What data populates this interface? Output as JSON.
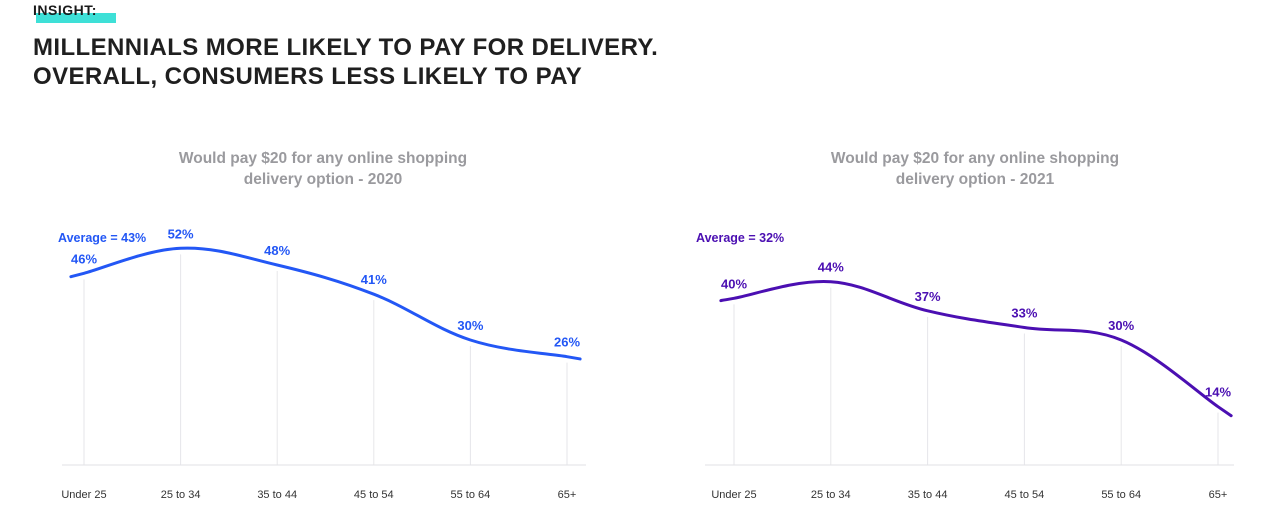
{
  "insight_label": "INSIGHT:",
  "headline": {
    "line1": "MILLENNIALS MORE LIKELY TO PAY FOR DELIVERY.",
    "line2": "OVERALL, CONSUMERS LESS LIKELY TO PAY"
  },
  "colors": {
    "series_2020": "#2357f5",
    "series_2021": "#4b0fb2",
    "highlight": "#3ee0d7"
  },
  "chart_data": [
    {
      "type": "line",
      "title_line1": "Would pay $20 for any online shopping",
      "title_line2": "delivery option - 2020",
      "average_label": "Average = 43%",
      "categories": [
        "Under 25",
        "25 to 34",
        "35 to 44",
        "45 to 54",
        "55 to 64",
        "65+"
      ],
      "values": [
        46,
        52,
        48,
        41,
        30,
        26
      ],
      "data_labels": [
        "46%",
        "52%",
        "48%",
        "41%",
        "30%",
        "26%"
      ],
      "ylim": [
        0,
        60
      ],
      "grid": "vertical",
      "color": "#2357f5"
    },
    {
      "type": "line",
      "title_line1": "Would pay $20 for any online shopping",
      "title_line2": "delivery option - 2021",
      "average_label": "Average = 32%",
      "categories": [
        "Under 25",
        "25 to 34",
        "35 to 44",
        "45 to 54",
        "55 to 64",
        "65+"
      ],
      "values": [
        40,
        44,
        37,
        33,
        30,
        14
      ],
      "data_labels": [
        "40%",
        "44%",
        "37%",
        "33%",
        "30%",
        "14%"
      ],
      "ylim": [
        0,
        60
      ],
      "grid": "vertical",
      "color": "#4b0fb2"
    }
  ]
}
